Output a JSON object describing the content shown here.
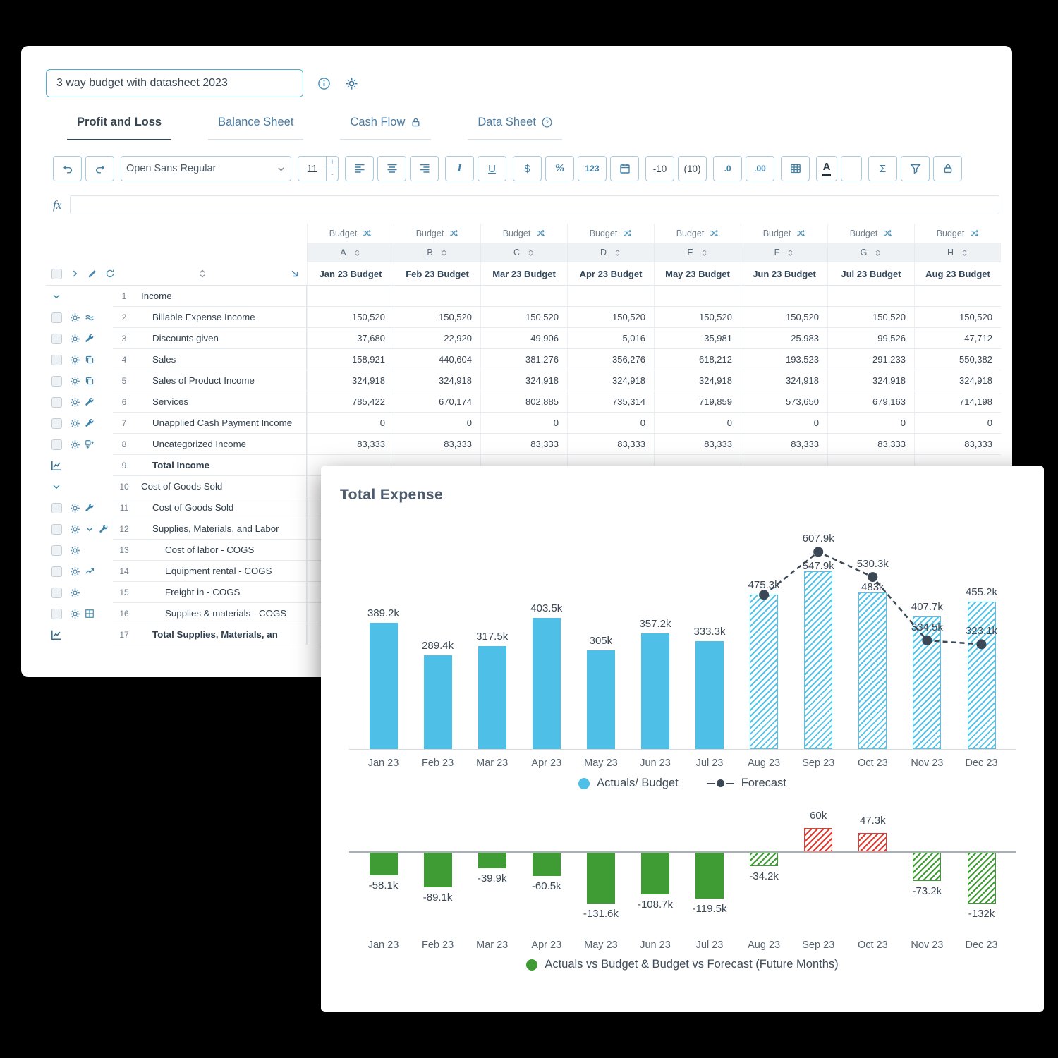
{
  "colors": {
    "accent": "#3d85aa",
    "toolbar_border": "#a9cbdf",
    "tab_active": "#36454f",
    "tab_inactive": "#4a7ca4",
    "bar_blue": "#4ec0e8",
    "bar_green": "#3f9c35",
    "bar_red": "#e23b31",
    "forecast": "#3b4754"
  },
  "window": {
    "title_input_value": "3 way budget with datasheet 2023",
    "header_icons": [
      "info-icon",
      "gear-icon"
    ]
  },
  "tabs": [
    {
      "label": "Profit and Loss",
      "active": true,
      "icon": null
    },
    {
      "label": "Balance Sheet",
      "active": false,
      "icon": null
    },
    {
      "label": "Cash Flow",
      "active": false,
      "icon": "lock-icon"
    },
    {
      "label": "Data Sheet",
      "active": false,
      "icon": "help-icon"
    }
  ],
  "toolbar": {
    "font_name": "Open Sans Regular",
    "font_size": "11",
    "size_plus": "+",
    "size_minus": "-",
    "italic": "I",
    "underline": "U",
    "currency": "$",
    "percent": "%",
    "number_format": "123",
    "negative_red": "-10",
    "negative_paren": "(10)",
    "decimal_left": ".0",
    "decimal_right": ".00",
    "font_color": "A",
    "sum": "Σ",
    "icons": [
      "undo-icon",
      "redo-icon",
      "align-left-icon",
      "align-center-icon",
      "align-right-icon",
      "calendar-icon",
      "table-icon",
      "filter-icon",
      "lock-icon"
    ]
  },
  "formula_bar": {
    "label": "fx",
    "value": ""
  },
  "spreadsheet": {
    "group_label": "Budget",
    "columns": [
      {
        "letter": "A",
        "title": "Jan 23 Budget"
      },
      {
        "letter": "B",
        "title": "Feb 23 Budget"
      },
      {
        "letter": "C",
        "title": "Mar 23 Budget"
      },
      {
        "letter": "D",
        "title": "Apr 23 Budget"
      },
      {
        "letter": "E",
        "title": "May 23 Budget"
      },
      {
        "letter": "F",
        "title": "Jun 23 Budget"
      },
      {
        "letter": "G",
        "title": "Jul 23 Budget"
      },
      {
        "letter": "H",
        "title": "Aug 23 Budget"
      }
    ],
    "rows": [
      {
        "num": "1",
        "kind": "section",
        "name": "Income",
        "indent": 0,
        "icons": [],
        "bold": false,
        "values": [
          "",
          "",
          "",
          "",
          "",
          "",
          "",
          ""
        ]
      },
      {
        "num": "2",
        "kind": "item",
        "name": "Billable Expense Income",
        "indent": 1,
        "icons": [
          "approx-icon"
        ],
        "bold": false,
        "values": [
          "150,520",
          "150,520",
          "150,520",
          "150,520",
          "150,520",
          "150,520",
          "150,520",
          "150,520"
        ]
      },
      {
        "num": "3",
        "kind": "item",
        "name": "Discounts given",
        "indent": 1,
        "icons": [
          "wrench-icon"
        ],
        "bold": false,
        "values": [
          "37,680",
          "22,920",
          "49,906",
          "5,016",
          "35,981",
          "25.983",
          "99,526",
          "47,712"
        ]
      },
      {
        "num": "4",
        "kind": "item",
        "name": "Sales",
        "indent": 1,
        "icons": [
          "copy-icon"
        ],
        "bold": false,
        "values": [
          "158,921",
          "440,604",
          "381,276",
          "356,276",
          "618,212",
          "193.523",
          "291,233",
          "550,382"
        ]
      },
      {
        "num": "5",
        "kind": "item",
        "name": "Sales of Product Income",
        "indent": 1,
        "icons": [
          "copy-icon"
        ],
        "bold": false,
        "values": [
          "324,918",
          "324,918",
          "324,918",
          "324,918",
          "324,918",
          "324,918",
          "324,918",
          "324,918"
        ]
      },
      {
        "num": "6",
        "kind": "item",
        "name": "Services",
        "indent": 1,
        "icons": [
          "wrench-icon"
        ],
        "bold": false,
        "values": [
          "785,422",
          "670,174",
          "802,885",
          "735,314",
          "719,859",
          "573,650",
          "679,163",
          "714,198"
        ]
      },
      {
        "num": "7",
        "kind": "item",
        "name": "Unapplied Cash Payment Income",
        "indent": 1,
        "icons": [
          "wrench-icon"
        ],
        "bold": false,
        "values": [
          "0",
          "0",
          "0",
          "0",
          "0",
          "0",
          "0",
          "0"
        ]
      },
      {
        "num": "8",
        "kind": "item",
        "name": "Uncategorized Income",
        "indent": 1,
        "icons": [
          "split-icon"
        ],
        "bold": false,
        "values": [
          "83,333",
          "83,333",
          "83,333",
          "83,333",
          "83,333",
          "83,333",
          "83,333",
          "83,333"
        ]
      },
      {
        "num": "9",
        "kind": "total",
        "name": "Total Income",
        "indent": 1,
        "icons": [],
        "bold": true,
        "values": [
          "",
          "",
          "",
          "",
          "",
          "",
          "",
          ""
        ]
      },
      {
        "num": "10",
        "kind": "section",
        "name": "Cost of Goods Sold",
        "indent": 0,
        "icons": [],
        "bold": false,
        "values": [
          "",
          "",
          "",
          "",
          "",
          "",
          "",
          ""
        ]
      },
      {
        "num": "11",
        "kind": "item",
        "name": "Cost of Goods Sold",
        "indent": 1,
        "icons": [
          "wrench-icon"
        ],
        "bold": false,
        "values": [
          "",
          "",
          "",
          "",
          "",
          "",
          "",
          ""
        ]
      },
      {
        "num": "12",
        "kind": "item",
        "name": "Supplies, Materials, and Labor",
        "indent": 1,
        "icons": [
          "chevron-down-icon",
          "wrench-icon"
        ],
        "bold": false,
        "values": [
          "",
          "",
          "",
          "",
          "",
          "",
          "",
          ""
        ]
      },
      {
        "num": "13",
        "kind": "item",
        "name": "Cost of labor - COGS",
        "indent": 2,
        "icons": [],
        "bold": false,
        "values": [
          "",
          "",
          "",
          "",
          "",
          "",
          "",
          ""
        ]
      },
      {
        "num": "14",
        "kind": "item",
        "name": "Equipment rental - COGS",
        "indent": 2,
        "icons": [
          "trend-icon"
        ],
        "bold": false,
        "values": [
          "",
          "",
          "",
          "",
          "",
          "",
          "",
          ""
        ]
      },
      {
        "num": "15",
        "kind": "item",
        "name": "Freight in - COGS",
        "indent": 2,
        "icons": [],
        "bold": false,
        "values": [
          "",
          "",
          "",
          "",
          "",
          "",
          "",
          ""
        ]
      },
      {
        "num": "16",
        "kind": "item",
        "name": "Supplies & materials - COGS",
        "indent": 2,
        "icons": [
          "grid-icon"
        ],
        "bold": false,
        "values": [
          "",
          "",
          "",
          "",
          "",
          "",
          "",
          ""
        ]
      },
      {
        "num": "17",
        "kind": "total",
        "name": "Total Supplies, Materials, an",
        "indent": 1,
        "icons": [],
        "bold": true,
        "values": [
          "",
          "",
          "",
          "",
          "",
          "",
          "",
          ""
        ]
      }
    ]
  },
  "chart_panel": {
    "title": "Total Expense",
    "legend_top": [
      {
        "label": "Actuals/ Budget",
        "marker": "blue-dot"
      },
      {
        "label": "Forecast",
        "marker": "dash-dot"
      }
    ],
    "legend_bottom": [
      {
        "label": "Actuals vs Budget & Budget vs Forecast (Future Months)",
        "marker": "green-dot"
      }
    ]
  },
  "chart_data": [
    {
      "type": "bar",
      "title": "Total Expense",
      "categories": [
        "Jan 23",
        "Feb 23",
        "Mar 23",
        "Apr 23",
        "May 23",
        "Jun 23",
        "Jul 23",
        "Aug 23",
        "Sep 23",
        "Oct 23",
        "Nov 23",
        "Dec 23"
      ],
      "unit": "k",
      "ylim": [
        0,
        650
      ],
      "legend_position": "bottom",
      "series": [
        {
          "name": "Actuals/ Budget",
          "type": "bar",
          "values": [
            389.2,
            289.4,
            317.5,
            403.5,
            305,
            357.2,
            333.3,
            475.3,
            547.9,
            483,
            407.7,
            455.2
          ],
          "labels": [
            "389.2k",
            "289.4k",
            "317.5k",
            "403.5k",
            "305k",
            "357.2k",
            "333.3k",
            "475.3k",
            "547.9k",
            "483k",
            "407.7k",
            "455.2k"
          ],
          "styles": [
            "solid-blue",
            "solid-blue",
            "solid-blue",
            "solid-blue",
            "solid-blue",
            "solid-blue",
            "solid-blue",
            "hatch-blue",
            "hatch-blue",
            "hatch-blue",
            "hatch-blue",
            "hatch-blue"
          ]
        },
        {
          "name": "Forecast",
          "type": "line",
          "values": [
            null,
            null,
            null,
            null,
            null,
            null,
            null,
            475.3,
            607.9,
            530.3,
            334.5,
            323.1
          ],
          "labels": [
            null,
            null,
            null,
            null,
            null,
            null,
            null,
            null,
            "607.9k",
            "530.3k",
            "334.5k",
            "323.1k"
          ]
        }
      ]
    },
    {
      "type": "bar",
      "title": "Actuals vs Budget & Budget vs Forecast (Future Months)",
      "categories": [
        "Jan 23",
        "Feb 23",
        "Mar 23",
        "Apr 23",
        "May 23",
        "Jun 23",
        "Jul 23",
        "Aug 23",
        "Sep 23",
        "Oct 23",
        "Nov 23",
        "Dec 23"
      ],
      "unit": "k",
      "ylim": [
        -140,
        70
      ],
      "values": [
        -58.1,
        -89.1,
        -39.9,
        -60.5,
        -131.6,
        -108.7,
        -119.5,
        -34.2,
        60,
        47.3,
        -73.2,
        -132
      ],
      "labels": [
        "-58.1k",
        "-89.1k",
        "-39.9k",
        "-60.5k",
        "-131.6k",
        "-108.7k",
        "-119.5k",
        "-34.2k",
        "60k",
        "47.3k",
        "-73.2k",
        "-132k"
      ],
      "styles": [
        "solid-green",
        "solid-green",
        "solid-green",
        "solid-green",
        "solid-green",
        "solid-green",
        "solid-green",
        "hatch-green",
        "hatch-red",
        "hatch-red",
        "hatch-green",
        "hatch-green"
      ]
    }
  ]
}
